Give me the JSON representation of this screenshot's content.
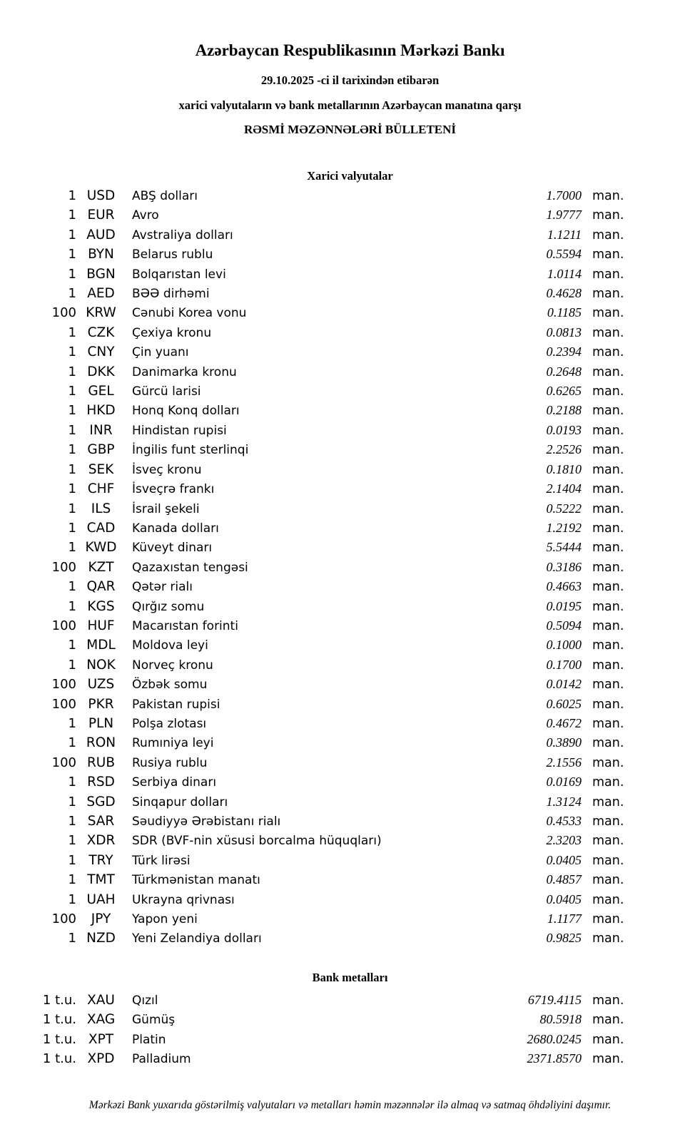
{
  "page": {
    "title": "Azərbaycan Respublikasının Mərkəzi Bankı",
    "date_line": "29.10.2025 -ci il tarixindən etibarən",
    "subtitle_line": "xarici valyutaların və bank metallarının Azərbaycan manatına qarşı",
    "bulletin_line": "RƏSMİ MƏZƏNNƏLƏRİ BÜLLETENİ",
    "footer": "Mərkəzi Bank yuxarıda göstərilmiş valyutaları və metalları həmin məzənnələr ilə almaq və satmaq öhdəliyini daşımır."
  },
  "currencies": {
    "heading": "Xarici valyutalar",
    "rows": [
      {
        "qty": "1",
        "code": "USD",
        "name": "ABŞ dolları",
        "rate": "1.7000",
        "unit": "man."
      },
      {
        "qty": "1",
        "code": "EUR",
        "name": "Avro",
        "rate": "1.9777",
        "unit": "man."
      },
      {
        "qty": "1",
        "code": "AUD",
        "name": "Avstraliya dolları",
        "rate": "1.1211",
        "unit": "man."
      },
      {
        "qty": "1",
        "code": "BYN",
        "name": "Belarus rublu",
        "rate": "0.5594",
        "unit": "man."
      },
      {
        "qty": "1",
        "code": "BGN",
        "name": "Bolqarıstan levi",
        "rate": "1.0114",
        "unit": "man."
      },
      {
        "qty": "1",
        "code": "AED",
        "name": "BƏƏ dirhəmi",
        "rate": "0.4628",
        "unit": "man."
      },
      {
        "qty": "100",
        "code": "KRW",
        "name": "Cənubi Korea vonu",
        "rate": "0.1185",
        "unit": "man."
      },
      {
        "qty": "1",
        "code": "CZK",
        "name": "Çexiya kronu",
        "rate": "0.0813",
        "unit": "man."
      },
      {
        "qty": "1",
        "code": "CNY",
        "name": "Çin yuanı",
        "rate": "0.2394",
        "unit": "man."
      },
      {
        "qty": "1",
        "code": "DKK",
        "name": "Danimarka kronu",
        "rate": "0.2648",
        "unit": "man."
      },
      {
        "qty": "1",
        "code": "GEL",
        "name": "Gürcü larisi",
        "rate": "0.6265",
        "unit": "man."
      },
      {
        "qty": "1",
        "code": "HKD",
        "name": "Honq Konq dolları",
        "rate": "0.2188",
        "unit": "man."
      },
      {
        "qty": "1",
        "code": "INR",
        "name": "Hindistan rupisi",
        "rate": "0.0193",
        "unit": "man."
      },
      {
        "qty": "1",
        "code": "GBP",
        "name": "İngilis funt sterlinqi",
        "rate": "2.2526",
        "unit": "man."
      },
      {
        "qty": "1",
        "code": "SEK",
        "name": "İsveç kronu",
        "rate": "0.1810",
        "unit": "man."
      },
      {
        "qty": "1",
        "code": "CHF",
        "name": "İsveçrə frankı",
        "rate": "2.1404",
        "unit": "man."
      },
      {
        "qty": "1",
        "code": "ILS",
        "name": "İsrail şekeli",
        "rate": "0.5222",
        "unit": "man."
      },
      {
        "qty": "1",
        "code": "CAD",
        "name": "Kanada dolları",
        "rate": "1.2192",
        "unit": "man."
      },
      {
        "qty": "1",
        "code": "KWD",
        "name": "Küveyt dinarı",
        "rate": "5.5444",
        "unit": "man."
      },
      {
        "qty": "100",
        "code": "KZT",
        "name": "Qazaxıstan tengəsi",
        "rate": "0.3186",
        "unit": "man."
      },
      {
        "qty": "1",
        "code": "QAR",
        "name": "Qətər rialı",
        "rate": "0.4663",
        "unit": "man."
      },
      {
        "qty": "1",
        "code": "KGS",
        "name": "Qırğız somu",
        "rate": "0.0195",
        "unit": "man."
      },
      {
        "qty": "100",
        "code": "HUF",
        "name": "Macarıstan forinti",
        "rate": "0.5094",
        "unit": "man."
      },
      {
        "qty": "1",
        "code": "MDL",
        "name": "Moldova leyi",
        "rate": "0.1000",
        "unit": "man."
      },
      {
        "qty": "1",
        "code": "NOK",
        "name": "Norveç kronu",
        "rate": "0.1700",
        "unit": "man."
      },
      {
        "qty": "100",
        "code": "UZS",
        "name": "Özbək somu",
        "rate": "0.0142",
        "unit": "man."
      },
      {
        "qty": "100",
        "code": "PKR",
        "name": "Pakistan rupisi",
        "rate": "0.6025",
        "unit": "man."
      },
      {
        "qty": "1",
        "code": "PLN",
        "name": "Polşa zlotası",
        "rate": "0.4672",
        "unit": "man."
      },
      {
        "qty": "1",
        "code": "RON",
        "name": "Rumıniya leyi",
        "rate": "0.3890",
        "unit": "man."
      },
      {
        "qty": "100",
        "code": "RUB",
        "name": "Rusiya rublu",
        "rate": "2.1556",
        "unit": "man."
      },
      {
        "qty": "1",
        "code": "RSD",
        "name": "Serbiya dinarı",
        "rate": "0.0169",
        "unit": "man."
      },
      {
        "qty": "1",
        "code": "SGD",
        "name": "Sinqapur dolları",
        "rate": "1.3124",
        "unit": "man."
      },
      {
        "qty": "1",
        "code": "SAR",
        "name": "Səudiyyə Ərəbistanı rialı",
        "rate": "0.4533",
        "unit": "man."
      },
      {
        "qty": "1",
        "code": "XDR",
        "name": "SDR (BVF-nin xüsusi borcalma hüquqları)",
        "rate": "2.3203",
        "unit": "man."
      },
      {
        "qty": "1",
        "code": "TRY",
        "name": "Türk lirəsi",
        "rate": "0.0405",
        "unit": "man."
      },
      {
        "qty": "1",
        "code": "TMT",
        "name": "Türkmənistan manatı",
        "rate": "0.4857",
        "unit": "man."
      },
      {
        "qty": "1",
        "code": "UAH",
        "name": "Ukrayna qrivnası",
        "rate": "0.0405",
        "unit": "man."
      },
      {
        "qty": "100",
        "code": "JPY",
        "name": "Yapon yeni",
        "rate": "1.1177",
        "unit": "man."
      },
      {
        "qty": "1",
        "code": "NZD",
        "name": "Yeni Zelandiya dolları",
        "rate": "0.9825",
        "unit": "man."
      }
    ]
  },
  "metals": {
    "heading": "Bank metalları",
    "rows": [
      {
        "qty": "1 t.u.",
        "code": "XAU",
        "name": "Qızıl",
        "rate": "6719.4115",
        "unit": "man."
      },
      {
        "qty": "1 t.u.",
        "code": "XAG",
        "name": "Gümüş",
        "rate": "80.5918",
        "unit": "man."
      },
      {
        "qty": "1 t.u.",
        "code": "XPT",
        "name": "Platin",
        "rate": "2680.0245",
        "unit": "man."
      },
      {
        "qty": "1 t.u.",
        "code": "XPD",
        "name": "Palladium",
        "rate": "2371.8570",
        "unit": "man."
      }
    ]
  }
}
